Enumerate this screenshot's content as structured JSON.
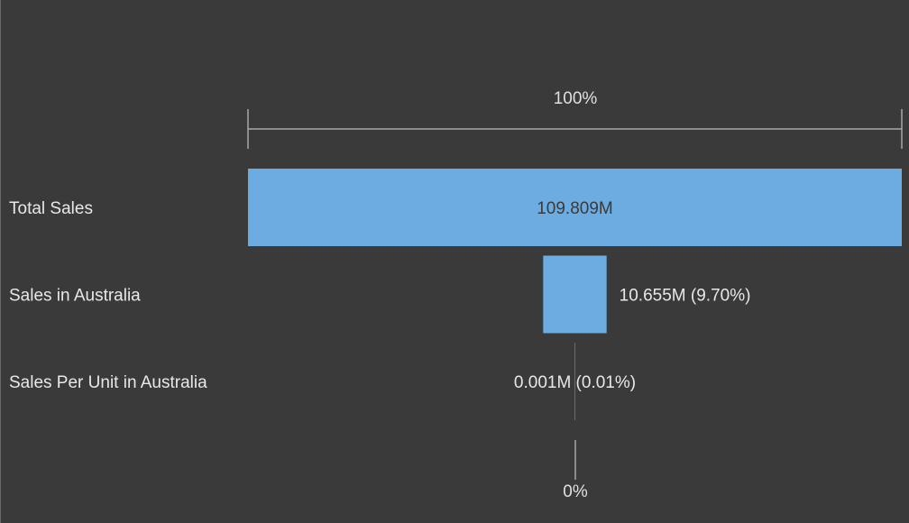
{
  "chart_data": {
    "type": "funnel",
    "top_scale_label": "100%",
    "bottom_scale_label": "0%",
    "bar_color": "#6cace0",
    "stages": [
      {
        "label": "Total Sales",
        "value": 109.809,
        "display": "109.809M"
      },
      {
        "label": "Sales in Australia",
        "value": 10.655,
        "display": "10.655M (9.70%)"
      },
      {
        "label": "Sales Per Unit in Australia",
        "value": 0.001,
        "display": "0.001M (0.01%)"
      }
    ]
  }
}
